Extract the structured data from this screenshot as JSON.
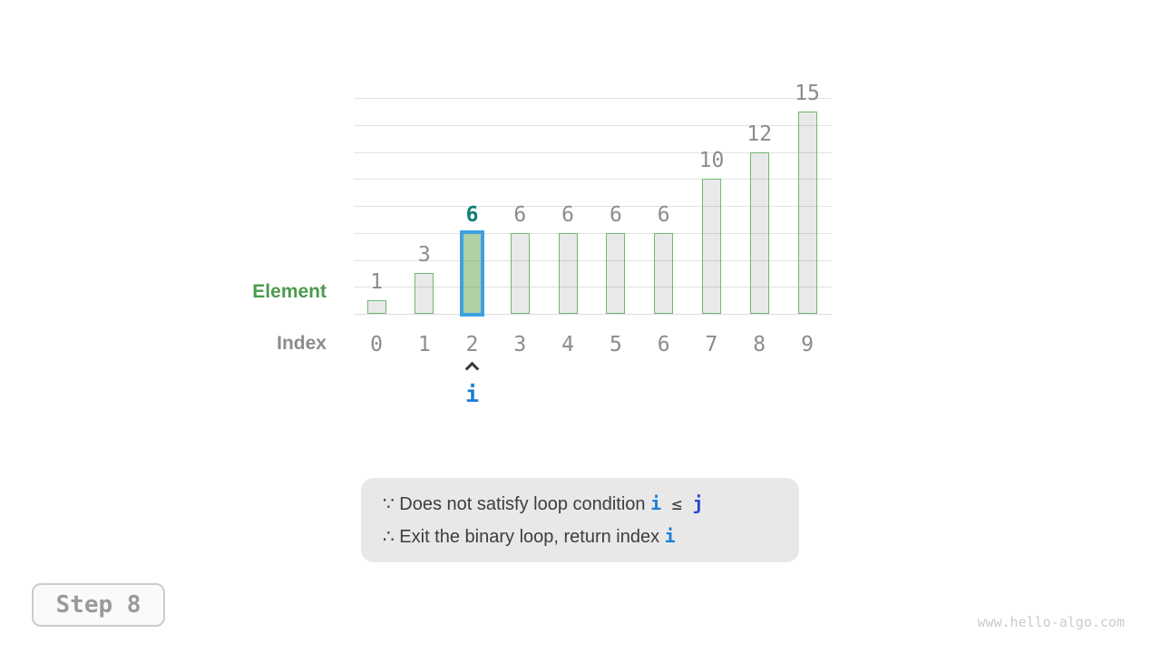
{
  "chart_data": {
    "type": "bar",
    "element_label": "Element",
    "index_label": "Index",
    "categories": [
      "0",
      "1",
      "2",
      "3",
      "4",
      "5",
      "6",
      "7",
      "8",
      "9"
    ],
    "values": [
      1,
      3,
      6,
      6,
      6,
      6,
      6,
      10,
      12,
      15
    ],
    "ylim": [
      0,
      16
    ],
    "grid_step": 2,
    "grid": true,
    "legend_position": "none",
    "highlight": {
      "index": 2,
      "value": 6
    },
    "pointer": {
      "index": 2,
      "symbol": "^",
      "label": "i"
    }
  },
  "note": {
    "lines": [
      {
        "segments": [
          {
            "text": "∵ Does not satisfy loop condition ",
            "style": "plain"
          },
          {
            "text": "i",
            "style": "var-i"
          },
          {
            "text": " ≤ ",
            "style": "op"
          },
          {
            "text": "j",
            "style": "var-j"
          }
        ]
      },
      {
        "segments": [
          {
            "text": "∴ Exit the binary loop, return index ",
            "style": "plain"
          },
          {
            "text": "i",
            "style": "var-i"
          }
        ]
      }
    ]
  },
  "step": {
    "label": "Step 8"
  },
  "watermark": {
    "text": "www.hello-algo.com"
  },
  "colors": {
    "bar_border": "#6fba70",
    "highlight_border": "#3da0e2",
    "highlight_value": "#0e7f74",
    "label_gray": "#8c8c8c",
    "element_green": "#4c9a4e",
    "var_i_blue": "#1b7fd4",
    "var_j_blue": "#2b46d4",
    "grid": "#e3e3e3",
    "note_bg": "#e8e8e8",
    "note_text": "#3d3d3d",
    "step_text": "#9a9a9a",
    "watermark": "#cbcbcb"
  }
}
